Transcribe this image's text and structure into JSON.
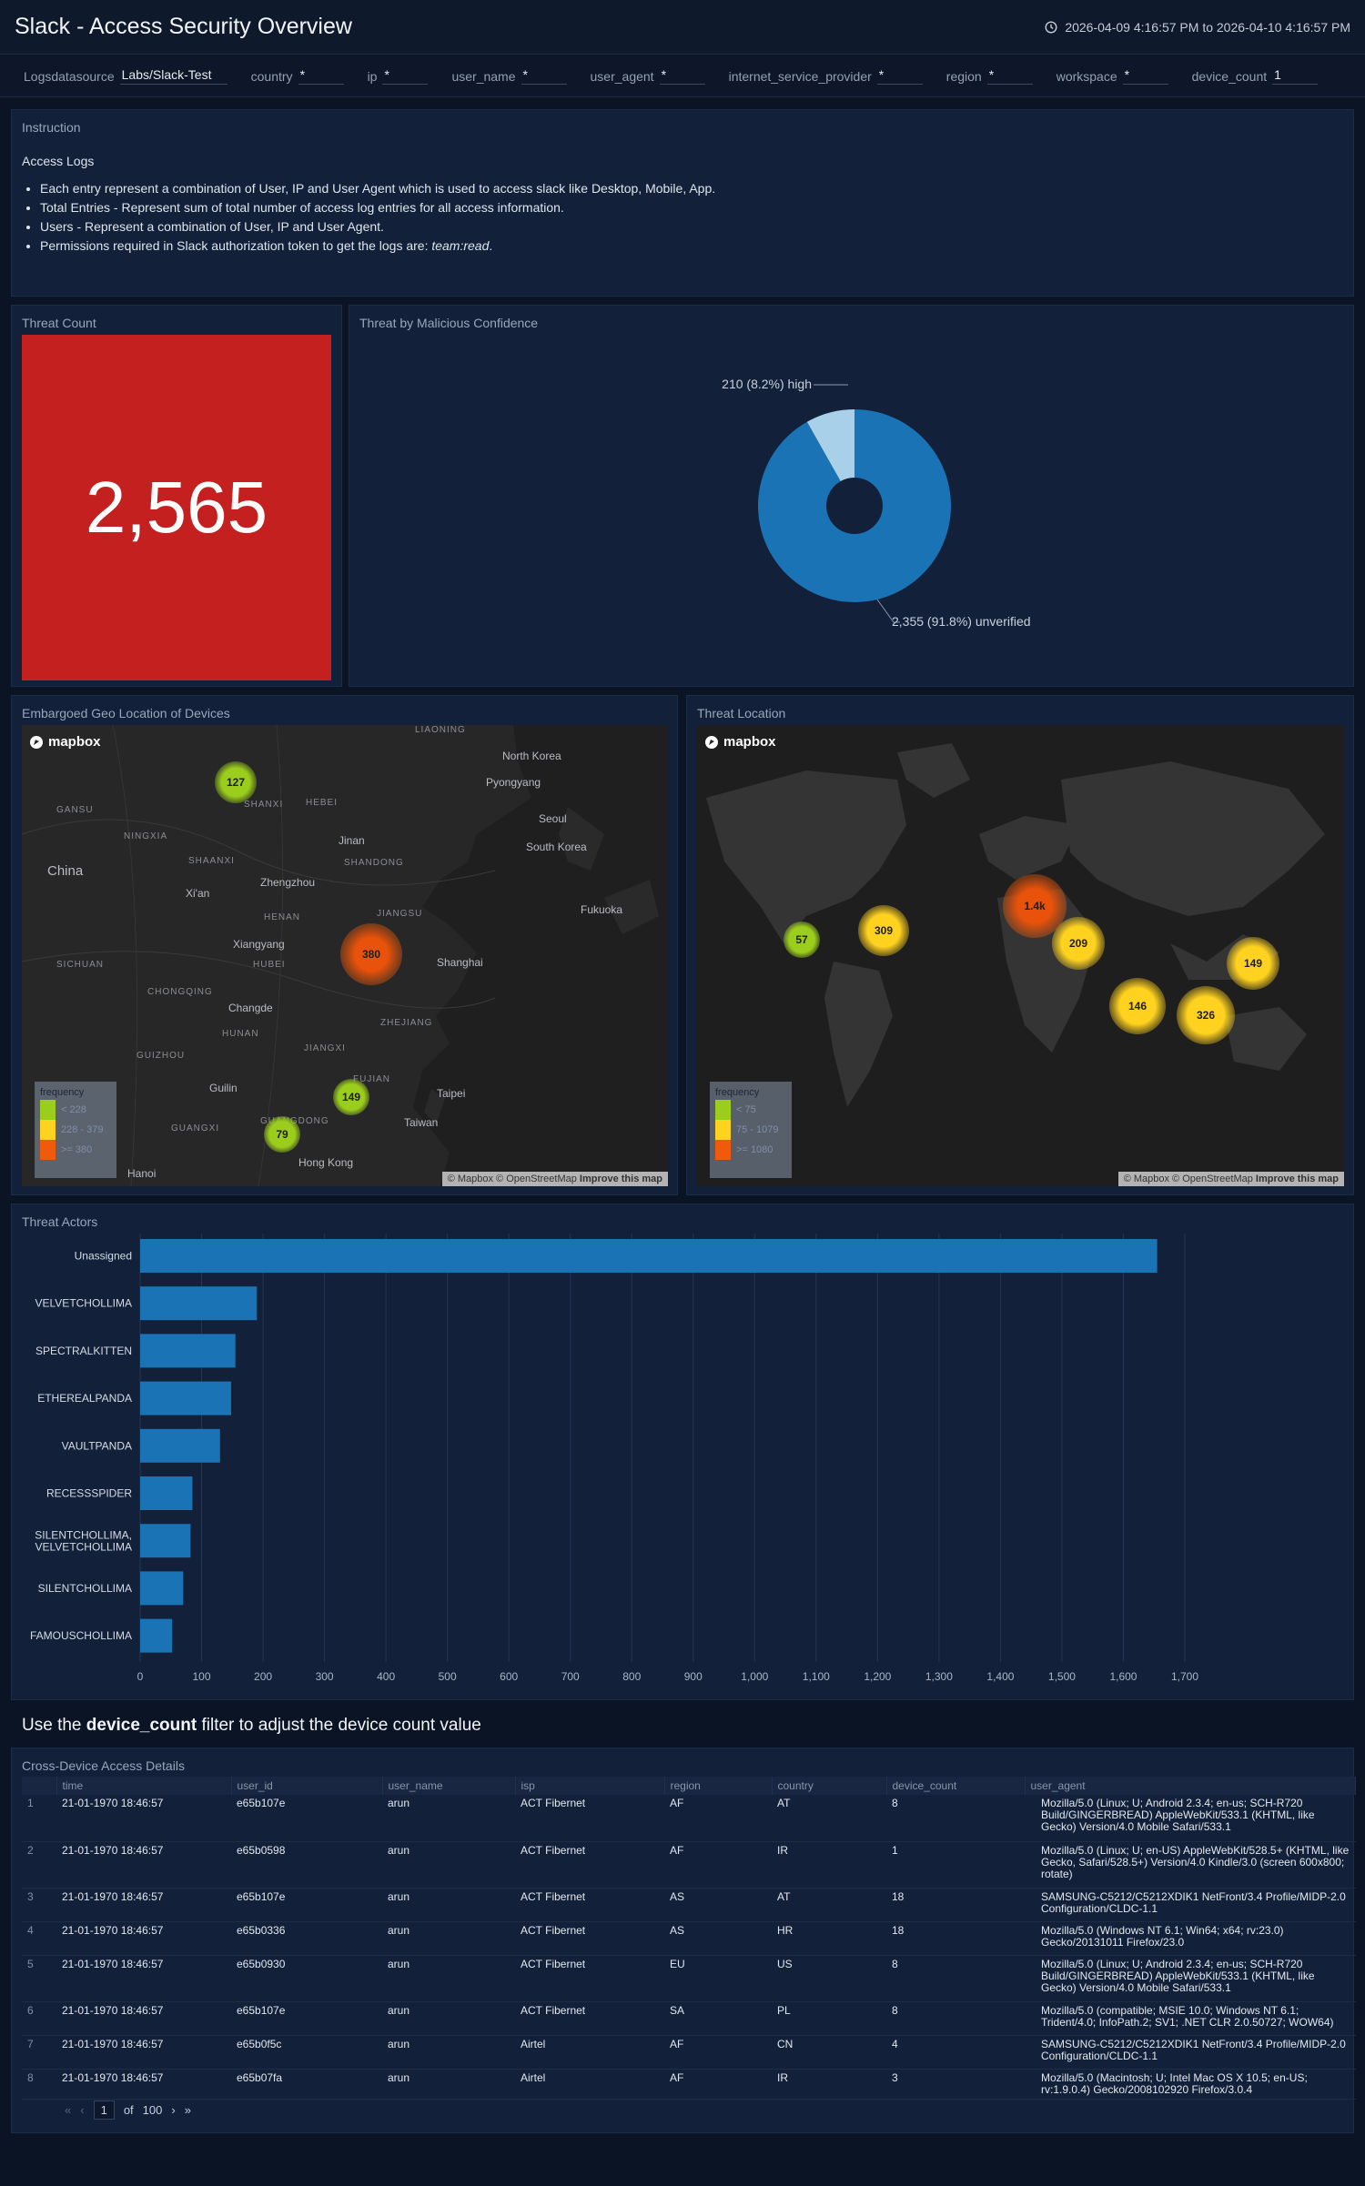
{
  "header": {
    "title": "Slack - Access Security Overview",
    "time_range": "2026-04-09 4:16:57 PM to 2026-04-10 4:16:57 PM"
  },
  "filters": [
    {
      "label": "Logsdatasource",
      "value": "Labs/Slack-Test"
    },
    {
      "label": "country",
      "value": "*"
    },
    {
      "label": "ip",
      "value": "*"
    },
    {
      "label": "user_name",
      "value": "*"
    },
    {
      "label": "user_agent",
      "value": "*"
    },
    {
      "label": "internet_service_provider",
      "value": "*"
    },
    {
      "label": "region",
      "value": "*"
    },
    {
      "label": "workspace",
      "value": "*"
    },
    {
      "label": "device_count",
      "value": "1"
    }
  ],
  "instruction": {
    "title": "Instruction",
    "heading": "Access Logs",
    "bullets": [
      "Each entry represent a combination of User, IP and User Agent which is used to access slack like Desktop, Mobile, App.",
      "Total Entries - Represent sum of total number of access log entries for all access information.",
      "Users - Represent a combination of User, IP and User Agent."
    ],
    "perm_text": "Permissions required in Slack authorization token to get the logs are: ",
    "perm_em": "team:read",
    "perm_end": "."
  },
  "threat_count": {
    "title": "Threat Count",
    "value": "2,565"
  },
  "pie": {
    "title": "Threat by Malicious Confidence",
    "chart_data": {
      "type": "pie",
      "slices": [
        {
          "label": "high",
          "value": 210,
          "percent": 8.2,
          "color": "#a8d0e8"
        },
        {
          "label": "unverified",
          "value": 2355,
          "percent": 91.8,
          "color": "#1a73b4"
        }
      ]
    },
    "label_high": "210 (8.2%) high",
    "label_unverified": "2,355 (91.8%) unverified"
  },
  "geo_map": {
    "title": "Embargoed Geo Location of Devices",
    "logo": "mapbox",
    "attribution": "© Mapbox © OpenStreetMap",
    "improve": "Improve this map",
    "legend_title": "frequency",
    "legend": [
      {
        "label": "< 228",
        "color": "#9acd1c"
      },
      {
        "label": "228 - 379",
        "color": "#ffd21f"
      },
      {
        "label": ">= 380",
        "color": "#f05a0a"
      }
    ],
    "clusters": [
      {
        "count": "127",
        "level": "low"
      },
      {
        "count": "380",
        "level": "high"
      },
      {
        "count": "149",
        "level": "low"
      },
      {
        "count": "79",
        "level": "low"
      }
    ],
    "places": [
      "LIAONING",
      "North Korea",
      "Pyongyang",
      "GANSU",
      "SHANXI",
      "HEBEI",
      "Seoul",
      "South Korea",
      "NINGXIA",
      "Jinan",
      "SHAANXI",
      "SHANDONG",
      "China",
      "Zhengzhou",
      "Xi'an",
      "HENAN",
      "JIANGSU",
      "Fukuoka",
      "Xiangyang",
      "Shanghai",
      "SICHUAN",
      "HUBEI",
      "CHONGQING",
      "Changde",
      "ZHEJIANG",
      "HUNAN",
      "JIANGXI",
      "GUIZHOU",
      "FUJIAN",
      "Guilin",
      "Taipei",
      "GUANGXI",
      "GUANGDONG",
      "Taiwan",
      "Hong Kong",
      "Hanoi"
    ]
  },
  "threat_map": {
    "title": "Threat Location",
    "logo": "mapbox",
    "attribution": "© Mapbox © OpenStreetMap",
    "improve": "Improve this map",
    "legend_title": "frequency",
    "legend": [
      {
        "label": "< 75",
        "color": "#9acd1c"
      },
      {
        "label": "75 - 1079",
        "color": "#ffd21f"
      },
      {
        "label": ">= 1080",
        "color": "#f05a0a"
      }
    ],
    "clusters": [
      {
        "count": "57",
        "level": "low"
      },
      {
        "count": "309",
        "level": "mid"
      },
      {
        "count": "1.4k",
        "level": "high"
      },
      {
        "count": "209",
        "level": "mid"
      },
      {
        "count": "149",
        "level": "mid"
      },
      {
        "count": "146",
        "level": "mid"
      },
      {
        "count": "326",
        "level": "mid"
      }
    ]
  },
  "actors": {
    "title": "Threat Actors",
    "chart_data": {
      "type": "bar",
      "orientation": "horizontal",
      "categories": [
        "Unassigned",
        "VELVETCHOLLIMA",
        "SPECTRALKITTEN",
        "ETHEREALPANDA",
        "VAULTPANDA",
        "RECESSSPIDER",
        "SILENTCHOLLIMA,VELVETCHOLLIMA",
        "SILENTCHOLLIMA",
        "FAMOUSCHOLLIMA"
      ],
      "values": [
        1655,
        190,
        155,
        148,
        130,
        85,
        82,
        70,
        52
      ],
      "xlim": [
        0,
        1700
      ],
      "xticks": [
        "0",
        "100",
        "200",
        "300",
        "400",
        "500",
        "600",
        "700",
        "800",
        "900",
        "1,000",
        "1,100",
        "1,200",
        "1,300",
        "1,400",
        "1,500",
        "1,600",
        "1,700"
      ],
      "color": "#1a73b4",
      "grid": true
    }
  },
  "note": {
    "pre": "Use the ",
    "strong": "device_count",
    "post": " filter to adjust the device count value"
  },
  "table": {
    "title": "Cross-Device Access Details",
    "columns": [
      "",
      "time",
      "user_id",
      "user_name",
      "isp",
      "region",
      "country",
      "device_count",
      "user_agent"
    ],
    "rows": [
      [
        "1",
        "21-01-1970 18:46:57",
        "e65b107e",
        "arun",
        "ACT Fibernet",
        "AF",
        "AT",
        "8",
        "Mozilla/5.0 (Linux; U; Android 2.3.4; en-us; SCH-R720 Build/GINGERBREAD) AppleWebKit/533.1 (KHTML, like Gecko) Version/4.0 Mobile Safari/533.1"
      ],
      [
        "2",
        "21-01-1970 18:46:57",
        "e65b0598",
        "arun",
        "ACT Fibernet",
        "AF",
        "IR",
        "1",
        "Mozilla/5.0 (Linux; U; en-US) AppleWebKit/528.5+ (KHTML, like Gecko, Safari/528.5+) Version/4.0 Kindle/3.0 (screen 600x800; rotate)"
      ],
      [
        "3",
        "21-01-1970 18:46:57",
        "e65b107e",
        "arun",
        "ACT Fibernet",
        "AS",
        "AT",
        "18",
        "SAMSUNG-C5212/C5212XDIK1 NetFront/3.4 Profile/MIDP-2.0 Configuration/CLDC-1.1"
      ],
      [
        "4",
        "21-01-1970 18:46:57",
        "e65b0336",
        "arun",
        "ACT Fibernet",
        "AS",
        "HR",
        "18",
        "Mozilla/5.0 (Windows NT 6.1; Win64; x64; rv:23.0) Gecko/20131011 Firefox/23.0"
      ],
      [
        "5",
        "21-01-1970 18:46:57",
        "e65b0930",
        "arun",
        "ACT Fibernet",
        "EU",
        "US",
        "8",
        "Mozilla/5.0 (Linux; U; Android 2.3.4; en-us; SCH-R720 Build/GINGERBREAD) AppleWebKit/533.1 (KHTML, like Gecko) Version/4.0 Mobile Safari/533.1"
      ],
      [
        "6",
        "21-01-1970 18:46:57",
        "e65b107e",
        "arun",
        "ACT Fibernet",
        "SA",
        "PL",
        "8",
        "Mozilla/5.0 (compatible; MSIE 10.0; Windows NT 6.1; Trident/4.0; InfoPath.2; SV1; .NET CLR 2.0.50727; WOW64)"
      ],
      [
        "7",
        "21-01-1970 18:46:57",
        "e65b0f5c",
        "arun",
        "Airtel",
        "AF",
        "CN",
        "4",
        "SAMSUNG-C5212/C5212XDIK1 NetFront/3.4 Profile/MIDP-2.0 Configuration/CLDC-1.1"
      ],
      [
        "8",
        "21-01-1970 18:46:57",
        "e65b07fa",
        "arun",
        "Airtel",
        "AF",
        "IR",
        "3",
        "Mozilla/5.0 (Macintosh; U; Intel Mac OS X 10.5; en-US; rv:1.9.0.4) Gecko/2008102920 Firefox/3.0.4"
      ]
    ],
    "pager": {
      "page": "1",
      "of": "of",
      "total": "100"
    }
  }
}
